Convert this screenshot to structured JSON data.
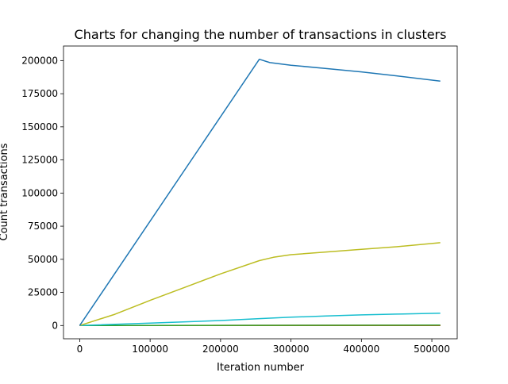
{
  "chart_data": {
    "type": "line",
    "title": "Charts for changing the number of transactions in clusters",
    "xlabel": "Iteration number",
    "ylabel": "Count transactions",
    "xlim": [
      -23000,
      536000
    ],
    "ylim": [
      -10000,
      211000
    ],
    "xticks": [
      0,
      100000,
      200000,
      300000,
      400000,
      500000
    ],
    "yticks": [
      0,
      25000,
      50000,
      75000,
      100000,
      125000,
      150000,
      175000,
      200000
    ],
    "grid": false,
    "legend": "none",
    "series": [
      {
        "color": "#1f77b4",
        "x": [
          0,
          255000,
          270000,
          300000,
          350000,
          400000,
          450000,
          512000
        ],
        "y": [
          0,
          201000,
          198500,
          196500,
          194000,
          191500,
          188500,
          184500
        ]
      },
      {
        "color": "#bcbd22",
        "x": [
          0,
          50000,
          100000,
          150000,
          200000,
          255000,
          275000,
          300000,
          350000,
          400000,
          450000,
          512000
        ],
        "y": [
          0,
          8500,
          19000,
          29000,
          39000,
          49000,
          51500,
          53500,
          55500,
          57500,
          59500,
          62500
        ]
      },
      {
        "color": "#17becf",
        "x": [
          0,
          100000,
          200000,
          255000,
          300000,
          350000,
          400000,
          450000,
          512000
        ],
        "y": [
          0,
          1800,
          3800,
          5200,
          6300,
          7200,
          8000,
          8600,
          9300
        ]
      },
      {
        "color": "#2ca02c",
        "x": [
          0,
          512000
        ],
        "y": [
          0,
          300
        ]
      },
      {
        "color": "#ff7f0e",
        "x": [
          0,
          512000
        ],
        "y": [
          0,
          200
        ]
      },
      {
        "color": "#d62728",
        "x": [
          0,
          512000
        ],
        "y": [
          0,
          150
        ]
      },
      {
        "color": "#9467bd",
        "x": [
          0,
          512000
        ],
        "y": [
          0,
          100
        ]
      },
      {
        "color": "#8c564b",
        "x": [
          0,
          512000
        ],
        "y": [
          0,
          80
        ]
      },
      {
        "color": "#e377c2",
        "x": [
          0,
          512000
        ],
        "y": [
          0,
          60
        ]
      },
      {
        "color": "#7f7f7f",
        "x": [
          0,
          512000
        ],
        "y": [
          0,
          40
        ]
      }
    ]
  }
}
